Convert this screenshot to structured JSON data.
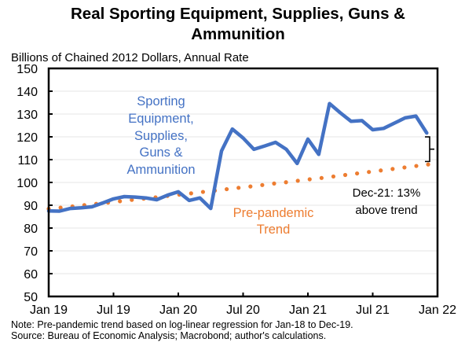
{
  "chart_data": {
    "type": "line",
    "title": "Real Sporting Equipment, Supplies, Guns & Ammunition",
    "subtitle": "Billions of Chained 2012 Dollars, Annual Rate",
    "xlabel": "",
    "ylabel": "Billions of Chained 2012 Dollars, Annual Rate",
    "ylim": [
      50,
      150
    ],
    "yticks": [
      50,
      60,
      70,
      80,
      90,
      100,
      110,
      120,
      130,
      140,
      150
    ],
    "xlim_months": [
      0,
      36
    ],
    "xticks": [
      {
        "month": 0,
        "label": "Jan 19"
      },
      {
        "month": 6,
        "label": "Jul 19"
      },
      {
        "month": 12,
        "label": "Jan 20"
      },
      {
        "month": 18,
        "label": "Jul 20"
      },
      {
        "month": 24,
        "label": "Jan 21"
      },
      {
        "month": 30,
        "label": "Jul 21"
      },
      {
        "month": 36,
        "label": "Jan 22"
      }
    ],
    "grid": true,
    "series": [
      {
        "name": "Sporting Equipment, Supplies, Guns & Ammunition",
        "label_lines": [
          "Sporting",
          "Equipment,",
          "Supplies,",
          "Guns &",
          "Ammunition"
        ],
        "color": "#4472C4",
        "style": "solid",
        "x_months": [
          0,
          1,
          2,
          3,
          4,
          5,
          6,
          7,
          8,
          9,
          10,
          11,
          12,
          13,
          14,
          15,
          16,
          17,
          18,
          19,
          20,
          21,
          22,
          23,
          24,
          25,
          26,
          27,
          28,
          29,
          30,
          31,
          32,
          33,
          34,
          35
        ],
        "values": [
          87.5,
          87.4,
          88.6,
          88.9,
          89.3,
          91.0,
          92.8,
          93.8,
          93.6,
          93.2,
          92.4,
          94.4,
          95.9,
          92.1,
          93.2,
          88.6,
          113.8,
          123.4,
          119.5,
          114.5,
          116.0,
          117.6,
          114.5,
          108.3,
          119.0,
          112.3,
          134.6,
          130.5,
          126.8,
          127.1,
          123.1,
          123.7,
          126.0,
          128.3,
          129.1,
          121.7
        ]
      },
      {
        "name": "Pre-pandemic Trend",
        "label_lines": [
          "Pre-pandemic",
          "Trend"
        ],
        "color": "#ED7D31",
        "style": "dotted",
        "x_months": [
          0,
          1,
          2,
          3,
          4,
          5,
          6,
          7,
          8,
          9,
          10,
          11,
          12,
          13,
          14,
          15,
          16,
          17,
          18,
          19,
          20,
          21,
          22,
          23,
          24,
          25,
          26,
          27,
          28,
          29,
          30,
          31,
          32,
          33,
          34,
          35,
          36
        ],
        "values": [
          88.4,
          88.9,
          89.4,
          89.9,
          90.4,
          90.9,
          91.4,
          92.0,
          92.5,
          93.0,
          93.5,
          94.1,
          94.6,
          95.1,
          95.7,
          96.2,
          96.8,
          97.3,
          97.9,
          98.4,
          99.0,
          99.6,
          100.1,
          100.7,
          101.3,
          101.8,
          102.4,
          103.0,
          103.6,
          104.2,
          104.8,
          105.4,
          106.0,
          106.6,
          107.2,
          107.8,
          108.4
        ]
      }
    ],
    "annotations": [
      {
        "text_lines": [
          "Dec-21: 13%",
          "above trend"
        ],
        "type": "bracket",
        "from_value": 121.7,
        "to_value": 107.8,
        "month": 35
      }
    ],
    "notes": [
      "Note: Pre-pandemic trend based on log-linear regression for Jan-18 to Dec-19.",
      "Source: Bureau of Economic Analysis; Macrobond; author's calculations."
    ]
  },
  "title_lines": [
    "Real Sporting Equipment, Supplies, Guns &",
    "Ammunition"
  ]
}
